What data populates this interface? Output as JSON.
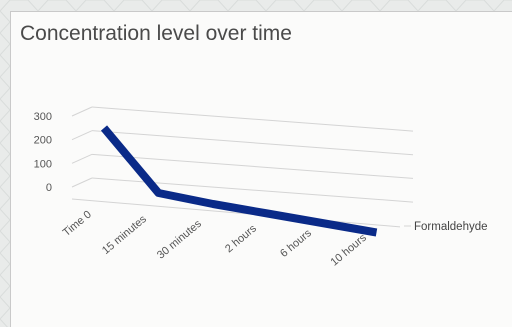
{
  "chart_data": {
    "type": "line",
    "style": "3d-line",
    "title": "Concentration level over time",
    "categories": [
      "Time 0",
      "15 minutes",
      "30 minutes",
      "2 hours",
      "6 hours",
      "10 hours"
    ],
    "series": [
      {
        "name": "Formaldehyde",
        "values": [
          210,
          10,
          -10,
          -25,
          -40,
          -55
        ],
        "color": "#0a2a88"
      }
    ],
    "y_ticks": [
      0,
      100,
      200,
      300
    ],
    "ylim": [
      0,
      300
    ],
    "grid": true,
    "legend": "none",
    "depth_axis_labels": [
      "Formaldehyde"
    ]
  },
  "colors": {
    "background": "#e9ebea",
    "card": "#fbfbfa",
    "gridline": "#d4d4d4",
    "series": "#0a2a88"
  }
}
